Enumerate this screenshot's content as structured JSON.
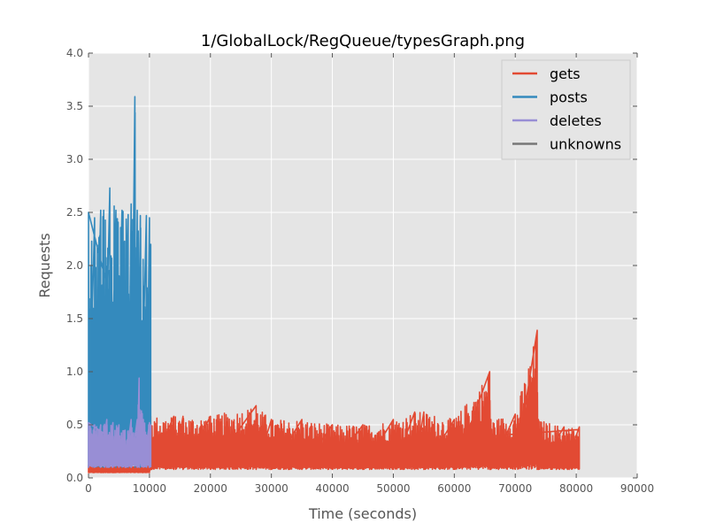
{
  "chart_data": {
    "type": "line",
    "title": "1/GlobalLock/RegQueue/typesGraph.png",
    "xlabel": "Time (seconds)",
    "ylabel": "Requests",
    "xlim": [
      0,
      90000
    ],
    "ylim": [
      0,
      4.0
    ],
    "x_ticks": [
      0,
      10000,
      20000,
      30000,
      40000,
      50000,
      60000,
      70000,
      80000,
      90000
    ],
    "y_ticks": [
      0.0,
      0.5,
      1.0,
      1.5,
      2.0,
      2.5,
      3.0,
      3.5,
      4.0
    ],
    "x_tick_labels": [
      "0",
      "10000",
      "20000",
      "30000",
      "40000",
      "50000",
      "60000",
      "70000",
      "80000",
      "90000"
    ],
    "y_tick_labels": [
      "0.0",
      "0.5",
      "1.0",
      "1.5",
      "2.0",
      "2.5",
      "3.0",
      "3.5",
      "4.0"
    ],
    "grid": true,
    "legend_position": "top-right",
    "series": [
      {
        "name": "gets",
        "color": "#E24A33",
        "x": [
          0,
          10000,
          10200,
          14000,
          15500,
          20000,
          27500,
          30000,
          35000,
          40000,
          45000,
          50000,
          53500,
          55000,
          60000,
          65800,
          66000,
          70000,
          73600,
          73800,
          78000,
          80500
        ],
        "min": [
          0.05,
          0.05,
          0.08,
          0.08,
          0.08,
          0.08,
          0.08,
          0.08,
          0.08,
          0.08,
          0.08,
          0.08,
          0.08,
          0.08,
          0.08,
          0.08,
          0.08,
          0.08,
          0.08,
          0.08,
          0.08,
          0.08
        ],
        "max": [
          0.12,
          0.12,
          0.58,
          0.58,
          0.58,
          0.58,
          0.68,
          0.55,
          0.55,
          0.5,
          0.5,
          0.55,
          0.62,
          0.62,
          0.55,
          1.0,
          0.55,
          0.6,
          1.39,
          0.55,
          0.48,
          0.48
        ]
      },
      {
        "name": "posts",
        "color": "#348ABD",
        "x": [
          0,
          1000,
          2000,
          2500,
          3500,
          4500,
          5500,
          6500,
          7000,
          7600,
          8000,
          8500,
          9500,
          10000,
          10200
        ],
        "min": [
          0.1,
          0.1,
          0.1,
          0.1,
          0.1,
          0.1,
          0.1,
          0.1,
          0.1,
          0.1,
          0.1,
          0.1,
          0.1,
          0.1,
          0.1
        ],
        "max": [
          2.5,
          2.45,
          2.52,
          2.52,
          2.73,
          2.52,
          2.52,
          2.48,
          2.58,
          3.59,
          2.52,
          2.47,
          2.47,
          2.45,
          2.2
        ]
      },
      {
        "name": "deletes",
        "color": "#988ED5",
        "x": [
          0,
          1000,
          2000,
          3000,
          4000,
          5000,
          6000,
          7000,
          8000,
          8300,
          9000,
          10000,
          10200
        ],
        "min": [
          0.1,
          0.1,
          0.1,
          0.1,
          0.1,
          0.1,
          0.1,
          0.1,
          0.1,
          0.1,
          0.1,
          0.1,
          0.1
        ],
        "max": [
          0.52,
          0.5,
          0.5,
          0.55,
          0.52,
          0.5,
          0.45,
          0.55,
          0.55,
          0.94,
          0.55,
          0.52,
          0.5
        ]
      },
      {
        "name": "unknowns",
        "color": "#777777",
        "x": [],
        "min": [],
        "max": []
      }
    ]
  }
}
